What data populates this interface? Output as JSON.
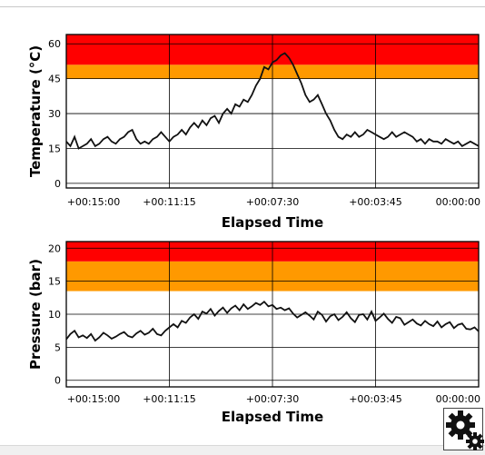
{
  "chart_data": [
    {
      "type": "line",
      "xlabel": "Elapsed Time",
      "ylabel": "Temperature (°C)",
      "x_ticks": [
        "+00:15:00",
        "+00:11:15",
        "+00:07:30",
        "+00:03:45",
        "00:00:00"
      ],
      "y_ticks": [
        0,
        15,
        30,
        45,
        60
      ],
      "ylim": [
        -2,
        64
      ],
      "grid": true,
      "threshold_bands": [
        {
          "from": 45,
          "to": 51,
          "color": "#ff9900"
        },
        {
          "from": 51,
          "to": 64,
          "color": "#ff0000"
        }
      ],
      "series": [
        {
          "x": [
            0,
            1,
            2,
            3,
            4,
            5,
            6,
            7,
            8,
            9,
            10,
            11,
            12,
            13,
            14,
            15,
            16,
            17,
            18,
            19,
            20,
            21,
            22,
            23,
            24,
            25,
            26,
            27,
            28,
            29,
            30,
            31,
            32,
            33,
            34,
            35,
            36,
            37,
            38,
            39,
            40,
            41,
            42,
            43,
            44,
            45,
            46,
            47,
            48,
            49,
            50,
            51,
            52,
            53,
            54,
            55,
            56,
            57,
            58,
            59,
            60,
            61,
            62,
            63,
            64,
            65,
            66,
            67,
            68,
            69,
            70,
            71,
            72,
            73,
            74,
            75,
            76,
            77,
            78,
            79,
            80,
            81,
            82,
            83,
            84,
            85,
            86,
            87,
            88,
            89,
            90,
            91,
            92,
            93,
            94,
            95,
            96,
            97,
            98,
            99,
            100
          ],
          "y": [
            18,
            16,
            20,
            15,
            16,
            17,
            19,
            16,
            17,
            19,
            20,
            18,
            17,
            19,
            20,
            22,
            23,
            19,
            17,
            18,
            17,
            19,
            20,
            22,
            20,
            18,
            20,
            21,
            23,
            21,
            24,
            26,
            24,
            27,
            25,
            28,
            29,
            26,
            30,
            32,
            30,
            34,
            33,
            36,
            35,
            38,
            42,
            45,
            50,
            49,
            52,
            53,
            55,
            56,
            54,
            51,
            47,
            43,
            38,
            35,
            36,
            38,
            34,
            30,
            27,
            23,
            20,
            19,
            21,
            20,
            22,
            20,
            21,
            23,
            22,
            21,
            20,
            19,
            20,
            22,
            20,
            21,
            22,
            21,
            20,
            18,
            19,
            17,
            19,
            18,
            18,
            17,
            19,
            18,
            17,
            18,
            16,
            17,
            18,
            17,
            16
          ]
        }
      ]
    },
    {
      "type": "line",
      "xlabel": "Elapsed Time",
      "ylabel": "Pressure (bar)",
      "x_ticks": [
        "+00:15:00",
        "+00:11:15",
        "+00:07:30",
        "+00:03:45",
        "00:00:00"
      ],
      "y_ticks": [
        0,
        5,
        10,
        15,
        20
      ],
      "ylim": [
        -1,
        21
      ],
      "grid": true,
      "threshold_bands": [
        {
          "from": 13.5,
          "to": 18,
          "color": "#ff9900"
        },
        {
          "from": 18,
          "to": 21,
          "color": "#ff0000"
        }
      ],
      "series": [
        {
          "x": [
            0,
            1,
            2,
            3,
            4,
            5,
            6,
            7,
            8,
            9,
            10,
            11,
            12,
            13,
            14,
            15,
            16,
            17,
            18,
            19,
            20,
            21,
            22,
            23,
            24,
            25,
            26,
            27,
            28,
            29,
            30,
            31,
            32,
            33,
            34,
            35,
            36,
            37,
            38,
            39,
            40,
            41,
            42,
            43,
            44,
            45,
            46,
            47,
            48,
            49,
            50,
            51,
            52,
            53,
            54,
            55,
            56,
            57,
            58,
            59,
            60,
            61,
            62,
            63,
            64,
            65,
            66,
            67,
            68,
            69,
            70,
            71,
            72,
            73,
            74,
            75,
            76,
            77,
            78,
            79,
            80,
            81,
            82,
            83,
            84,
            85,
            86,
            87,
            88,
            89,
            90,
            91,
            92,
            93,
            94,
            95,
            96,
            97,
            98,
            99,
            100
          ],
          "y": [
            6.2,
            7.0,
            7.5,
            6.5,
            6.8,
            6.4,
            7.0,
            6.0,
            6.5,
            7.2,
            6.8,
            6.3,
            6.6,
            7.0,
            7.3,
            6.7,
            6.5,
            7.1,
            7.5,
            6.9,
            7.2,
            7.8,
            7.0,
            6.8,
            7.5,
            8.0,
            8.5,
            8.0,
            9.0,
            8.7,
            9.5,
            10.0,
            9.3,
            10.4,
            10.1,
            10.8,
            9.8,
            10.5,
            11.0,
            10.2,
            10.9,
            11.3,
            10.6,
            11.5,
            10.8,
            11.2,
            11.7,
            11.4,
            11.9,
            11.2,
            11.4,
            10.8,
            11.0,
            10.6,
            10.9,
            10.1,
            9.5,
            9.9,
            10.3,
            9.8,
            9.2,
            10.4,
            9.9,
            8.9,
            9.7,
            10.0,
            9.1,
            9.6,
            10.3,
            9.4,
            8.8,
            9.9,
            10.0,
            9.2,
            10.4,
            9.0,
            9.5,
            10.1,
            9.3,
            8.7,
            9.6,
            9.4,
            8.4,
            8.8,
            9.2,
            8.6,
            8.3,
            9.0,
            8.5,
            8.2,
            8.9,
            8.0,
            8.5,
            8.8,
            7.9,
            8.4,
            8.6,
            7.8,
            7.7,
            8.0,
            7.4
          ]
        }
      ]
    }
  ],
  "icons": {
    "settings": "gears-icon"
  }
}
